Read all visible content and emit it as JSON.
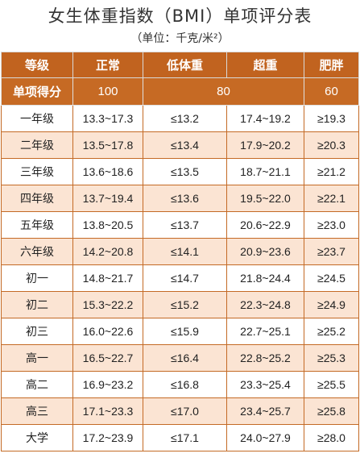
{
  "title": "女生体重指数（BMI）单项评分表",
  "subtitle": "（单位：千克/米²）",
  "header": {
    "grade": "等级",
    "normal": "正常",
    "underweight": "低体重",
    "overweight": "超重",
    "obese": "肥胖"
  },
  "score_row": {
    "label": "单项得分",
    "normal": "100",
    "under_over": "80",
    "obese": "60"
  },
  "rows": [
    {
      "grade": "一年级",
      "normal": "13.3~17.3",
      "underweight": "≤13.2",
      "overweight": "17.4~19.2",
      "obese": "≥19.3"
    },
    {
      "grade": "二年级",
      "normal": "13.5~17.8",
      "underweight": "≤13.4",
      "overweight": "17.9~20.2",
      "obese": "≥20.3"
    },
    {
      "grade": "三年级",
      "normal": "13.6~18.6",
      "underweight": "≤13.5",
      "overweight": "18.7~21.1",
      "obese": "≥21.2"
    },
    {
      "grade": "四年级",
      "normal": "13.7~19.4",
      "underweight": "≤13.6",
      "overweight": "19.5~22.0",
      "obese": "≥22.1"
    },
    {
      "grade": "五年级",
      "normal": "13.8~20.5",
      "underweight": "≤13.7",
      "overweight": "20.6~22.9",
      "obese": "≥23.0"
    },
    {
      "grade": "六年级",
      "normal": "14.2~20.8",
      "underweight": "≤14.1",
      "overweight": "20.9~23.6",
      "obese": "≥23.7"
    },
    {
      "grade": "初一",
      "normal": "14.8~21.7",
      "underweight": "≤14.7",
      "overweight": "21.8~24.4",
      "obese": "≥24.5"
    },
    {
      "grade": "初二",
      "normal": "15.3~22.2",
      "underweight": "≤15.2",
      "overweight": "22.3~24.8",
      "obese": "≥24.9"
    },
    {
      "grade": "初三",
      "normal": "16.0~22.6",
      "underweight": "≤15.9",
      "overweight": "22.7~25.1",
      "obese": "≥25.2"
    },
    {
      "grade": "高一",
      "normal": "16.5~22.7",
      "underweight": "≤16.4",
      "overweight": "22.8~25.2",
      "obese": "≥25.3"
    },
    {
      "grade": "高二",
      "normal": "16.9~23.2",
      "underweight": "≤16.8",
      "overweight": "23.3~25.4",
      "obese": "≥25.5"
    },
    {
      "grade": "高三",
      "normal": "17.1~23.3",
      "underweight": "≤17.0",
      "overweight": "23.4~25.7",
      "obese": "≥25.8"
    },
    {
      "grade": "大学",
      "normal": "17.2~23.9",
      "underweight": "≤17.1",
      "overweight": "24.0~27.9",
      "obese": "≥28.0"
    }
  ],
  "colors": {
    "header_bg": "#c1631f",
    "stripe_bg": "#fbe4d3",
    "border": "#c46a25"
  }
}
